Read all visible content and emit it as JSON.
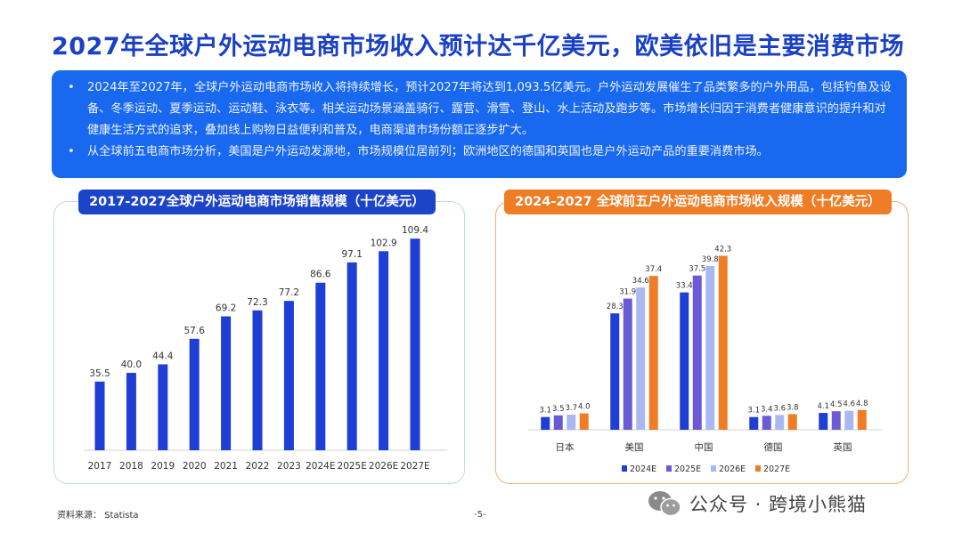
{
  "title": "2027年全球户外运动电商市场收入预计达千亿美元，欧美依旧是主要消费市场",
  "bullets": [
    "2024年至2027年，全球户外运动电商市场收入将持续增长，预计2027年将达到1,093.5亿美元。户外运动发展催生了品类繁多的户外用品，包括钓鱼及设备、冬季运动、夏季运动、运动鞋、泳衣等。相关运动场景涵盖骑行、露营、滑雪、登山、水上活动及跑步等。市场增长归因于消费者健康意识的提升和对健康生活方式的追求，叠加线上购物日益便利和普及，电商渠道市场份额正逐步扩大。",
    "从全球前五电商市场分析，美国是户外运动发源地，市场规模位居前列；欧洲地区的德国和英国也是户外运动产品的重要消费市场。"
  ],
  "chart_data": [
    {
      "type": "bar",
      "title": "2017-2027全球户外运动电商市场销售规模（十亿美元）",
      "categories": [
        "2017",
        "2018",
        "2019",
        "2020",
        "2021",
        "2022",
        "2023",
        "2024E",
        "2025E",
        "2026E",
        "2027E"
      ],
      "values": [
        35.5,
        40.0,
        44.4,
        57.6,
        69.2,
        72.3,
        77.2,
        86.6,
        97.1,
        102.9,
        109.4
      ],
      "value_labels": [
        "35.5",
        "40.0",
        "44.4",
        "57.6",
        "69.2",
        "72.3",
        "77.2",
        "86.6",
        "97.1",
        "102.9",
        "109.4"
      ],
      "color": "#1f3ed6",
      "ylim": [
        0,
        115
      ],
      "grid": false
    },
    {
      "type": "bar",
      "title": "2024-2027 全球前五户外运动电商市场收入规模（十亿美元）",
      "categories": [
        "日本",
        "美国",
        "中国",
        "德国",
        "英国"
      ],
      "series": [
        {
          "name": "2024E",
          "color": "#1f3ed6",
          "values": [
            3.1,
            28.3,
            33.4,
            3.1,
            4.1
          ]
        },
        {
          "name": "2025E",
          "color": "#6b5ad8",
          "values": [
            3.5,
            31.9,
            37.5,
            3.4,
            4.5
          ]
        },
        {
          "name": "2026E",
          "color": "#a9b8f3",
          "values": [
            3.7,
            34.6,
            39.8,
            3.6,
            4.6
          ]
        },
        {
          "name": "2027E",
          "color": "#ef7d26",
          "values": [
            4.0,
            37.4,
            42.3,
            3.8,
            4.8
          ]
        }
      ],
      "ylim": [
        0,
        45
      ],
      "legend": "bottom",
      "grid": false
    }
  ],
  "footer": {
    "source": "资料来源：  Statista",
    "page": "-5-",
    "watermark": "公众号 · 跨境小熊猫",
    "watermark_icon": "wechat-icon"
  }
}
